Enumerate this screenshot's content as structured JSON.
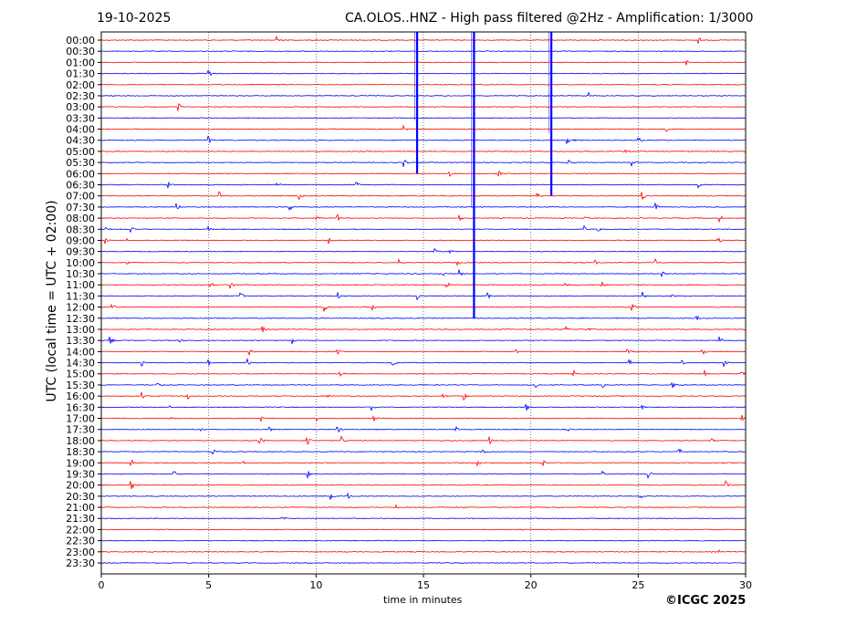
{
  "header": {
    "date": "19-10-2025",
    "title": "CA.OLOS..HNZ - High pass filtered @2Hz - Amplification: 1/3000"
  },
  "footer": {
    "copyright": "©ICGC 2025"
  },
  "chart_data": {
    "type": "line",
    "title": "CA.OLOS..HNZ - High pass filtered @2Hz - Amplification: 1/3000",
    "xlabel": "time in minutes",
    "ylabel": "UTC (local time = UTC + 02:00)",
    "xlim": [
      0,
      30
    ],
    "xticks": [
      "0",
      "5",
      "10",
      "15",
      "20",
      "25",
      "30"
    ],
    "xtick_values": [
      0,
      5,
      10,
      15,
      20,
      25,
      30
    ],
    "grid": "vertical dotted at 5-minute intervals",
    "colors": {
      "even": "#ff0000",
      "odd": "#0000ff",
      "large": "#0000ff"
    },
    "rows": [
      {
        "label": "00:00",
        "events": [
          8.2,
          27.8
        ]
      },
      {
        "label": "00:30",
        "events": []
      },
      {
        "label": "01:00",
        "events": [
          27.2
        ]
      },
      {
        "label": "01:30",
        "events": [
          5.0
        ]
      },
      {
        "label": "02:00",
        "events": []
      },
      {
        "label": "02:30",
        "events": [
          22.7
        ]
      },
      {
        "label": "03:00",
        "events": [
          3.6
        ]
      },
      {
        "label": "03:30",
        "events": []
      },
      {
        "label": "04:00",
        "events": [
          14.1,
          26.3
        ]
      },
      {
        "label": "04:30",
        "events": [
          5.0,
          21.7,
          22.0,
          25.0
        ]
      },
      {
        "label": "05:00",
        "events": [
          24.4
        ]
      },
      {
        "label": "05:30",
        "events": [
          14.1,
          21.7,
          24.7
        ]
      },
      {
        "label": "06:00",
        "events": [
          16.2,
          18.5
        ]
      },
      {
        "label": "06:30",
        "events": [
          3.1,
          8.2,
          11.9,
          27.8
        ]
      },
      {
        "label": "07:00",
        "events": [
          5.5,
          9.2,
          20.3,
          25.2
        ]
      },
      {
        "label": "07:30",
        "events": [
          3.5,
          8.8,
          25.8
        ]
      },
      {
        "label": "08:00",
        "events": [
          10.0,
          11.0,
          16.7,
          22.5,
          28.8
        ]
      },
      {
        "label": "08:30",
        "events": [
          0.2,
          1.4,
          5.0,
          22.5,
          23.1
        ]
      },
      {
        "label": "09:00",
        "events": [
          0.2,
          1.2,
          10.6,
          28.7
        ]
      },
      {
        "label": "09:30",
        "events": [
          15.5,
          16.2
        ]
      },
      {
        "label": "10:00",
        "events": [
          1.2,
          13.9,
          16.6,
          23.0,
          25.8
        ]
      },
      {
        "label": "10:30",
        "events": [
          15.9,
          16.7,
          26.1
        ]
      },
      {
        "label": "11:00",
        "events": [
          5.1,
          6.0,
          16.1,
          21.6,
          23.3
        ]
      },
      {
        "label": "11:30",
        "events": [
          6.5,
          11.0,
          14.7,
          18.0,
          25.2,
          26.5
        ]
      },
      {
        "label": "12:00",
        "events": [
          0.5,
          10.4,
          12.6,
          24.7
        ]
      },
      {
        "label": "12:30",
        "events": [
          27.7
        ]
      },
      {
        "label": "13:00",
        "events": [
          7.5,
          21.6,
          22.6
        ]
      },
      {
        "label": "13:30",
        "events": [
          0.4,
          3.6,
          8.9,
          28.8
        ]
      },
      {
        "label": "14:00",
        "events": [
          6.9,
          11.0,
          19.3,
          24.5,
          28.0
        ]
      },
      {
        "label": "14:30",
        "events": [
          1.9,
          5.0,
          6.8,
          13.6,
          24.6,
          27.0,
          29.0
        ]
      },
      {
        "label": "15:00",
        "events": [
          11.1,
          22.0,
          28.1,
          29.8
        ]
      },
      {
        "label": "15:30",
        "events": [
          2.6,
          20.2,
          23.3,
          26.6
        ]
      },
      {
        "label": "16:00",
        "events": [
          1.9,
          4.0,
          10.5,
          15.9,
          16.9
        ]
      },
      {
        "label": "16:30",
        "events": [
          3.2,
          12.6,
          19.8,
          25.2
        ]
      },
      {
        "label": "17:00",
        "events": [
          3.2,
          7.4,
          10.0,
          12.7,
          29.8
        ]
      },
      {
        "label": "17:30",
        "events": [
          4.6,
          7.8,
          11.0,
          16.5,
          21.7
        ]
      },
      {
        "label": "18:00",
        "events": [
          7.4,
          9.6,
          11.2,
          18.1,
          28.4
        ]
      },
      {
        "label": "18:30",
        "events": [
          5.2,
          17.7,
          26.9
        ]
      },
      {
        "label": "19:00",
        "events": [
          1.4,
          6.6,
          17.5,
          20.6
        ]
      },
      {
        "label": "19:30",
        "events": [
          3.4,
          9.6,
          23.3,
          25.5
        ]
      },
      {
        "label": "20:00",
        "events": [
          1.4,
          29.1
        ]
      },
      {
        "label": "20:30",
        "events": [
          10.7,
          11.5,
          25.1
        ]
      },
      {
        "label": "21:00",
        "events": [
          13.7
        ]
      },
      {
        "label": "21:30",
        "events": [
          8.4
        ]
      },
      {
        "label": "22:00",
        "events": []
      },
      {
        "label": "22:30",
        "events": []
      },
      {
        "label": "23:00",
        "events": [
          28.7
        ]
      },
      {
        "label": "23:30",
        "events": []
      }
    ],
    "large_events": [
      {
        "minute": 14.7,
        "row_start": 0,
        "row_end": 12
      },
      {
        "minute": 17.35,
        "row_start": 0,
        "row_end": 25
      },
      {
        "minute": 20.95,
        "row_start": 0,
        "row_end": 14
      }
    ]
  }
}
